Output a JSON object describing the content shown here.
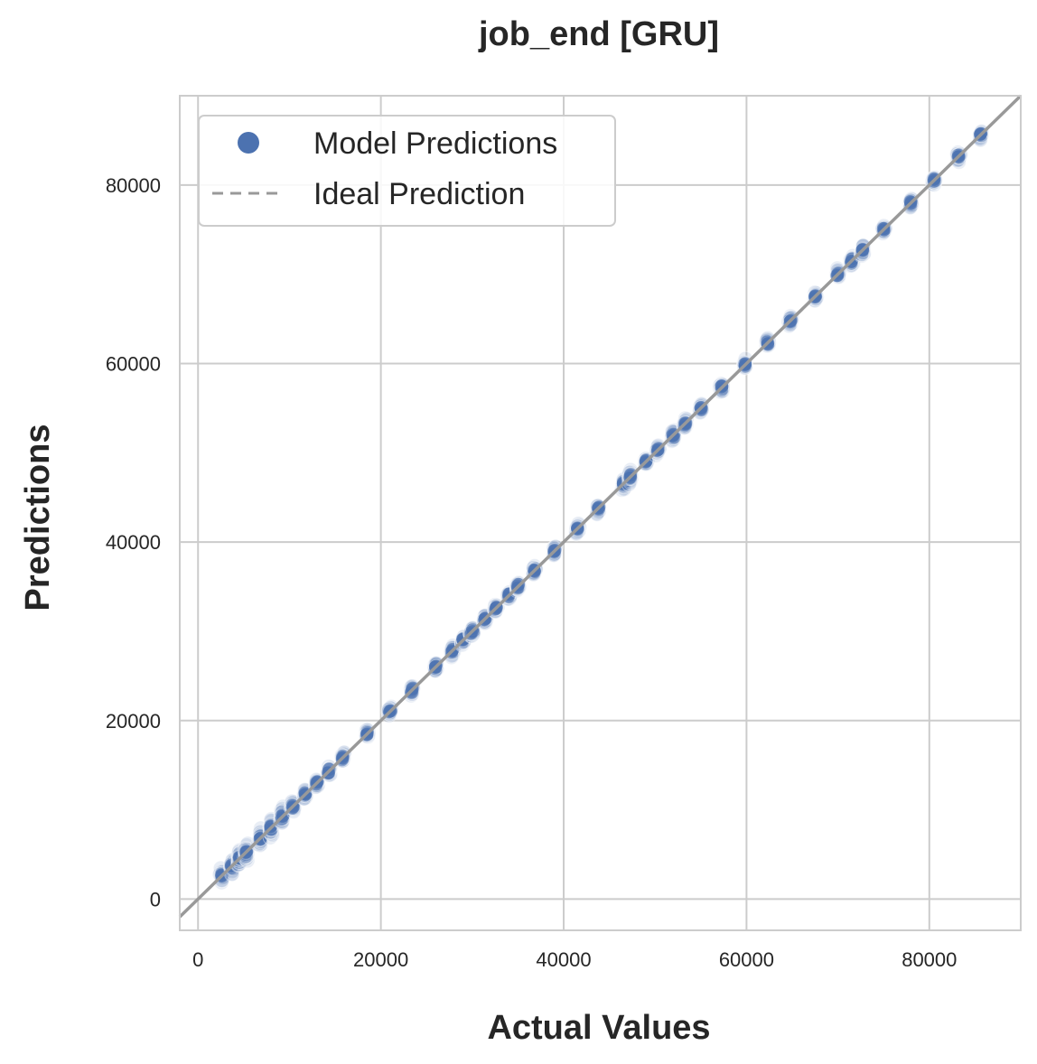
{
  "chart_data": {
    "type": "scatter",
    "title": "job_end [GRU]",
    "xlabel": "Actual Values",
    "ylabel": "Predictions",
    "xlim": [
      -2000,
      90000
    ],
    "ylim": [
      -3500,
      90000
    ],
    "xticks": [
      0,
      20000,
      40000,
      60000,
      80000
    ],
    "yticks": [
      0,
      20000,
      40000,
      60000,
      80000
    ],
    "xtick_labels": [
      "0",
      "20000",
      "40000",
      "60000",
      "80000"
    ],
    "ytick_labels": [
      "0",
      "20000",
      "40000",
      "60000",
      "80000"
    ],
    "grid": true,
    "legend": {
      "placement": "top-left",
      "entries": [
        "Model Predictions",
        "Ideal Prediction"
      ]
    },
    "colors": {
      "points": "#4c72b0",
      "ideal_line": "#999999",
      "grid": "#cccccc"
    },
    "series": [
      {
        "name": "Model Predictions",
        "clusters_x": [
          2600,
          3700,
          4500,
          5300,
          6800,
          8000,
          9200,
          10400,
          11700,
          13000,
          14300,
          15800,
          18500,
          21000,
          23400,
          26000,
          27800,
          29000,
          30000,
          31400,
          32600,
          34000,
          35000,
          36800,
          39000,
          41500,
          43800,
          46500,
          47300,
          49000,
          50300,
          52000,
          53300,
          55000,
          57300,
          59800,
          62300,
          64800,
          67500,
          70000,
          71500,
          72700,
          75000,
          78000,
          80500,
          83200,
          85600
        ],
        "x": [
          2600,
          5300,
          10400,
          15800,
          18500,
          21000,
          26000,
          31400,
          36800,
          39000,
          46500,
          52000,
          57300,
          59800,
          62300,
          67500,
          72700,
          78000,
          80500,
          83200,
          85600
        ],
        "y": [
          3000,
          5000,
          10300,
          15500,
          18500,
          20800,
          26000,
          31500,
          37000,
          39000,
          46500,
          52000,
          57300,
          60000,
          62500,
          67800,
          73000,
          78000,
          80500,
          83000,
          85500
        ]
      },
      {
        "name": "Ideal Prediction",
        "x": [
          -2000,
          90000
        ],
        "y": [
          -2000,
          90000
        ]
      }
    ]
  }
}
